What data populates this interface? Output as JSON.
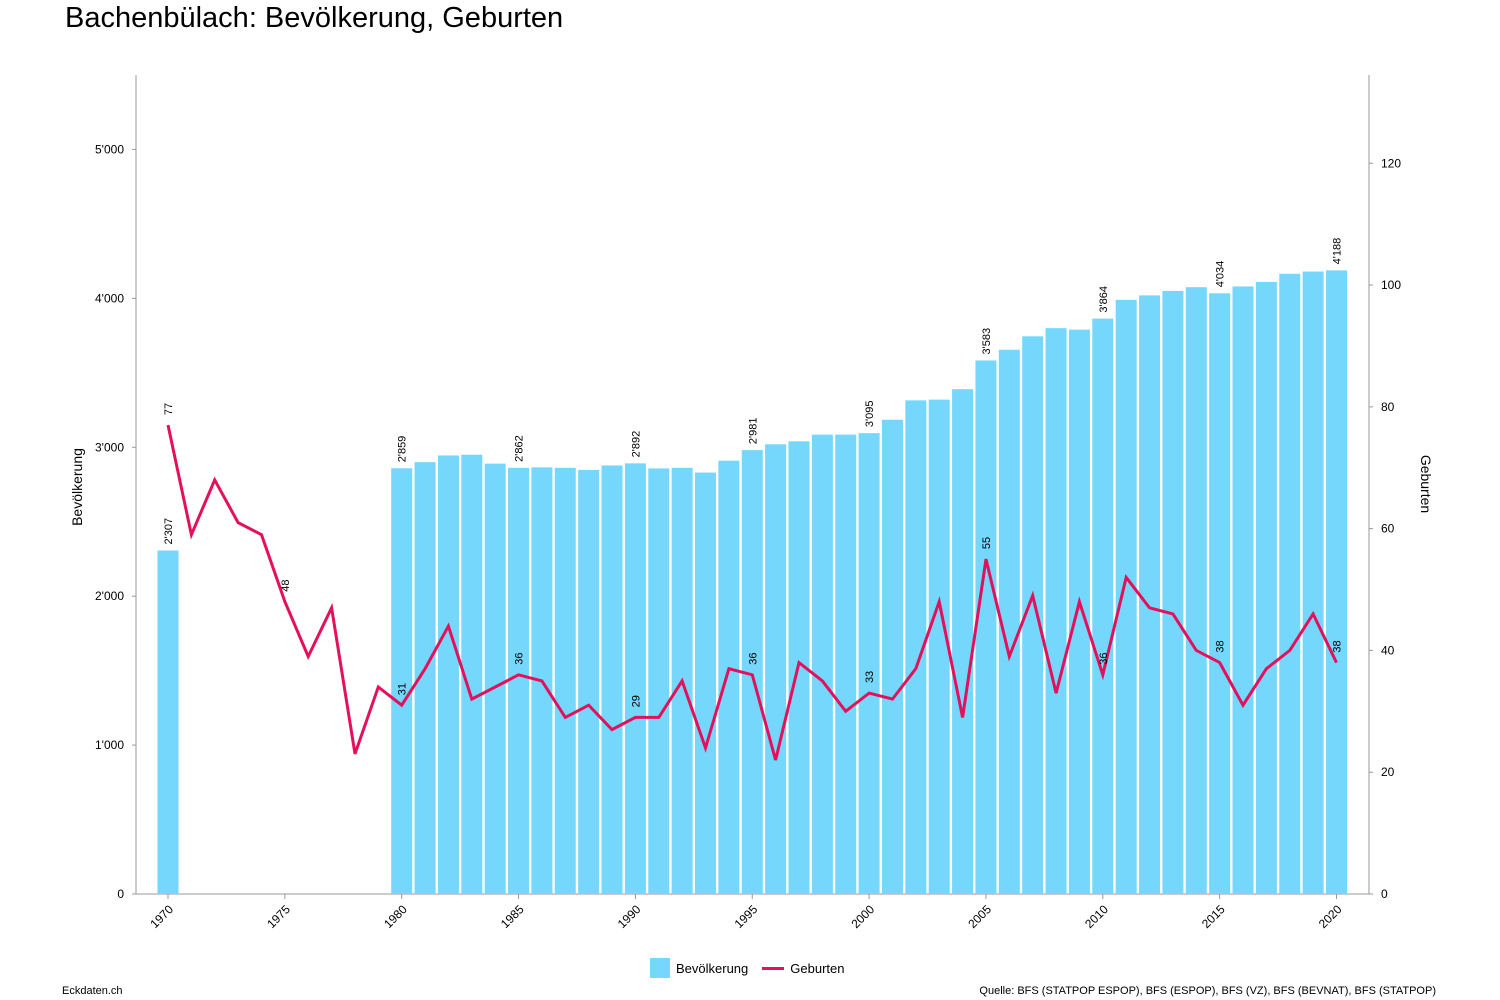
{
  "title": "Bachenbülach: Bevölkerung, Geburten",
  "footer": {
    "left": "Eckdaten.ch",
    "right": "Quelle: BFS (STATPOP ESPOP), BFS (ESPOP), BFS (VZ), BFS (BEVNAT), BFS (STATPOP)"
  },
  "colors": {
    "bar": "#74d7fb",
    "line": "#e4105c",
    "axis": "#999999"
  },
  "chart_data": {
    "type": "bar+line",
    "years": [
      1970,
      1971,
      1972,
      1973,
      1974,
      1975,
      1976,
      1977,
      1978,
      1979,
      1980,
      1981,
      1982,
      1983,
      1984,
      1985,
      1986,
      1987,
      1988,
      1989,
      1990,
      1991,
      1992,
      1993,
      1994,
      1995,
      1996,
      1997,
      1998,
      1999,
      2000,
      2001,
      2002,
      2003,
      2004,
      2005,
      2006,
      2007,
      2008,
      2009,
      2010,
      2011,
      2012,
      2013,
      2014,
      2015,
      2016,
      2017,
      2018,
      2019,
      2020
    ],
    "series": [
      {
        "name": "Bevölkerung",
        "type": "bar",
        "axis": "left",
        "values": [
          2307,
          null,
          null,
          null,
          null,
          null,
          null,
          null,
          null,
          null,
          2859,
          2900,
          2945,
          2950,
          2890,
          2862,
          2865,
          2862,
          2848,
          2878,
          2892,
          2858,
          2862,
          2830,
          2910,
          2981,
          3020,
          3040,
          3085,
          3085,
          3095,
          3185,
          3315,
          3320,
          3390,
          3583,
          3655,
          3745,
          3800,
          3790,
          3864,
          3990,
          4020,
          4050,
          4075,
          4034,
          4080,
          4110,
          4165,
          4180,
          4188
        ],
        "labels": {
          "1970": "2'307",
          "1980": "2'859",
          "1985": "2'862",
          "1990": "2'892",
          "1995": "2'981",
          "2000": "3'095",
          "2005": "3'583",
          "2010": "3'864",
          "2015": "4'034",
          "2020": "4'188"
        }
      },
      {
        "name": "Geburten",
        "type": "line",
        "axis": "right",
        "values": [
          77,
          59,
          68,
          61,
          59,
          48,
          39,
          47,
          23,
          34,
          31,
          37,
          44,
          32,
          34,
          36,
          35,
          29,
          31,
          27,
          29,
          29,
          35,
          24,
          37,
          36,
          22,
          38,
          35,
          30,
          33,
          32,
          37,
          48,
          29,
          55,
          39,
          49,
          33,
          48,
          36,
          52,
          47,
          46,
          40,
          38,
          31,
          37,
          40,
          46,
          38
        ],
        "labels": {
          "1970": "77",
          "1975": "48",
          "1980": "31",
          "1985": "36",
          "1990": "29",
          "1995": "36",
          "2000": "33",
          "2005": "55",
          "2010": "36",
          "2015": "38",
          "2020": "38"
        }
      }
    ],
    "y_left": {
      "label": "Bevölkerung",
      "range": [
        0,
        5500
      ],
      "ticks": [
        0,
        1000,
        2000,
        3000,
        4000,
        5000
      ],
      "tick_labels": [
        "0",
        "1'000",
        "2'000",
        "3'000",
        "4'000",
        "5'000"
      ]
    },
    "y_right": {
      "label": "Geburten",
      "range": [
        0,
        134.5
      ],
      "ticks": [
        0,
        20,
        40,
        60,
        80,
        100,
        120
      ],
      "tick_labels": [
        "0",
        "20",
        "40",
        "60",
        "80",
        "100",
        "120"
      ]
    },
    "x_ticks": [
      1970,
      1975,
      1980,
      1985,
      1990,
      1995,
      2000,
      2005,
      2010,
      2015,
      2020
    ],
    "legend_position": "bottom-center"
  }
}
